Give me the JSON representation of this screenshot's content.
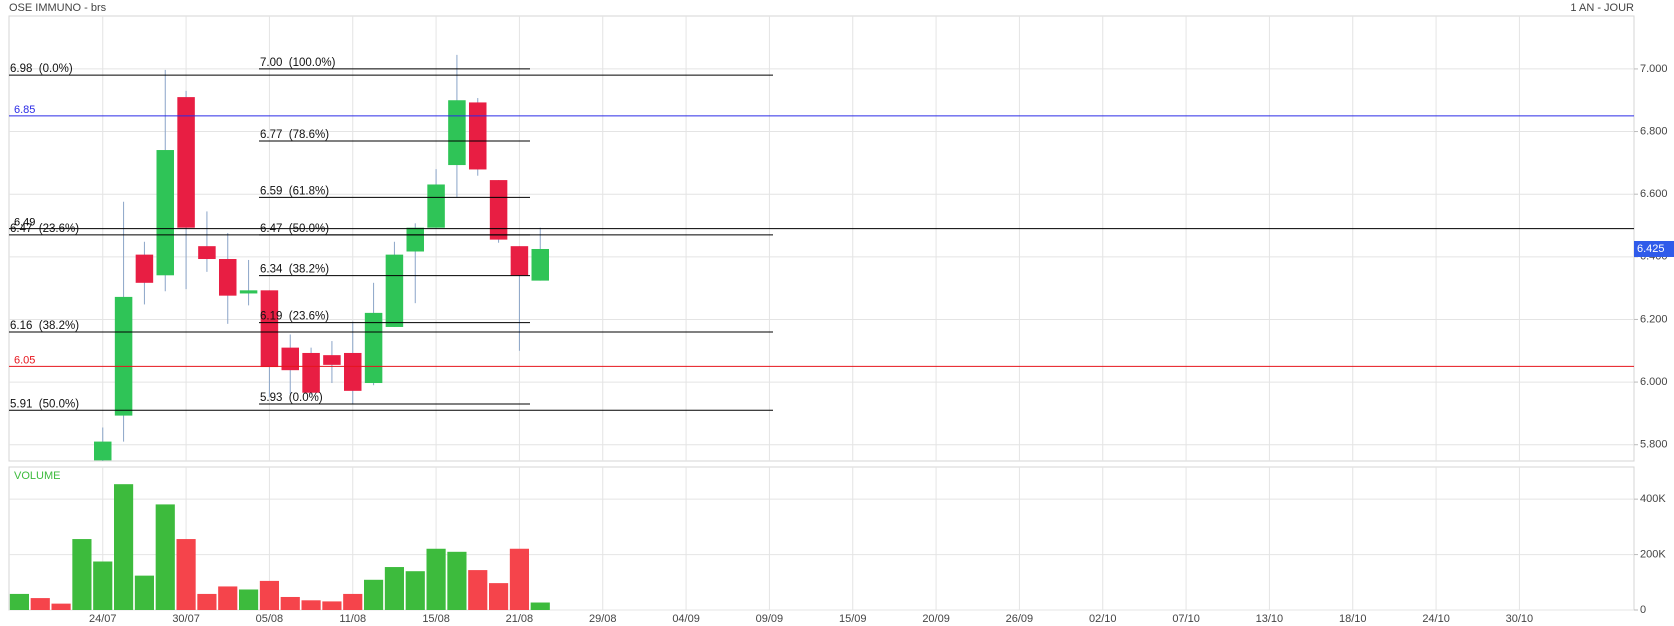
{
  "chart_data": [
    {
      "type": "candlestick",
      "title": "OSE IMMUNO - brs",
      "period": "1 AN - JOUR",
      "ylim": [
        5.748,
        7.169
      ],
      "yticks": [
        {
          "value": 7.0,
          "label": "7.000"
        },
        {
          "value": 6.8,
          "label": "6.800"
        },
        {
          "value": 6.6,
          "label": "6.600"
        },
        {
          "value": 6.4,
          "label": "6.400"
        },
        {
          "value": 6.2,
          "label": "6.200"
        },
        {
          "value": 6.0,
          "label": "6.000"
        },
        {
          "value": 5.8,
          "label": "5.800"
        }
      ],
      "grid": true,
      "up_color": "#2fc457",
      "down_color": "#e81e43",
      "open": [
        null,
        null,
        null,
        null,
        5.75,
        5.893,
        6.407,
        6.341,
        6.91,
        6.434,
        6.393,
        6.283,
        6.293,
        6.11,
        6.093,
        6.086,
        6.093,
        5.997,
        6.176,
        6.417,
        6.493,
        6.693,
        6.893,
        6.645,
        6.434,
        6.324,
        null,
        null,
        null,
        null,
        null,
        null,
        null,
        null,
        null,
        null,
        null,
        null,
        null,
        null,
        null,
        null,
        null,
        null,
        null,
        null,
        null,
        null,
        null,
        null,
        null,
        null,
        null,
        null,
        null,
        null,
        null,
        null,
        null,
        null,
        null,
        null,
        null,
        null,
        null,
        null,
        null,
        null,
        null,
        null,
        null,
        null,
        null,
        null,
        null,
        null,
        null,
        null
      ],
      "high": [
        null,
        null,
        null,
        null,
        5.855,
        6.576,
        6.448,
        6.997,
        6.93,
        6.545,
        6.476,
        6.39,
        6.293,
        6.152,
        6.11,
        6.131,
        6.193,
        6.317,
        6.448,
        6.507,
        6.68,
        7.045,
        6.907,
        6.645,
        6.434,
        6.493,
        null,
        null,
        null,
        null,
        null,
        null,
        null,
        null,
        null,
        null,
        null,
        null,
        null,
        null,
        null,
        null,
        null,
        null,
        null,
        null,
        null,
        null,
        null,
        null,
        null,
        null,
        null,
        null,
        null,
        null,
        null,
        null,
        null,
        null,
        null,
        null,
        null,
        null,
        null,
        null,
        null,
        null,
        null,
        null,
        null,
        null,
        null,
        null,
        null,
        null,
        null,
        null
      ],
      "low": [
        null,
        null,
        null,
        null,
        5.74,
        5.81,
        6.248,
        6.29,
        6.297,
        6.352,
        6.186,
        6.245,
        5.952,
        5.962,
        5.959,
        5.997,
        5.931,
        5.99,
        6.176,
        6.252,
        6.493,
        6.59,
        6.659,
        6.445,
        6.1,
        6.324,
        null,
        null,
        null,
        null,
        null,
        null,
        null,
        null,
        null,
        null,
        null,
        null,
        null,
        null,
        null,
        null,
        null,
        null,
        null,
        null,
        null,
        null,
        null,
        null,
        null,
        null,
        null,
        null,
        null,
        null,
        null,
        null,
        null,
        null,
        null,
        null,
        null,
        null,
        null,
        null,
        null,
        null,
        null,
        null,
        null,
        null,
        null,
        null,
        null,
        null,
        null,
        null
      ],
      "close": [
        null,
        null,
        null,
        null,
        5.81,
        6.272,
        6.317,
        6.741,
        6.493,
        6.393,
        6.276,
        6.293,
        6.048,
        6.038,
        5.966,
        6.055,
        5.972,
        6.221,
        6.407,
        6.493,
        6.631,
        6.9,
        6.679,
        6.455,
        6.341,
        6.425,
        null,
        null,
        null,
        null,
        null,
        null,
        null,
        null,
        null,
        null,
        null,
        null,
        null,
        null,
        null,
        null,
        null,
        null,
        null,
        null,
        null,
        null,
        null,
        null,
        null,
        null,
        null,
        null,
        null,
        null,
        null,
        null,
        null,
        null,
        null,
        null,
        null,
        null,
        null,
        null,
        null,
        null,
        null,
        null,
        null,
        null,
        null,
        null,
        null,
        null,
        null,
        null
      ],
      "last_price": 6.425,
      "last_price_color": "#2f5bea",
      "lines": [
        {
          "value": 6.85,
          "label": "6.85",
          "color": "#2b2be6"
        },
        {
          "value": 6.05,
          "label": "6.05",
          "color": "#e6141c"
        },
        {
          "value": 6.49,
          "label": "6.49",
          "color": "#000000"
        }
      ],
      "fib_a": [
        {
          "value": 6.98,
          "label": "6.98  (0.0%)"
        },
        {
          "value": 6.47,
          "label": "6.47  (23.6%)"
        },
        {
          "value": 6.16,
          "label": "6.16  (38.2%)"
        },
        {
          "value": 5.91,
          "label": "5.91  (50.0%)"
        }
      ],
      "fib_b": [
        {
          "value": 7.0,
          "label": "7.00  (100.0%)"
        },
        {
          "value": 6.77,
          "label": "6.77  (78.6%)"
        },
        {
          "value": 6.59,
          "label": "6.59  (61.8%)"
        },
        {
          "value": 6.47,
          "label": "6.47  (50.0%)"
        },
        {
          "value": 6.34,
          "label": "6.34  (38.2%)"
        },
        {
          "value": 6.19,
          "label": "6.19  (23.6%)"
        },
        {
          "value": 5.93,
          "label": "5.93  (0.0%)"
        }
      ]
    },
    {
      "type": "bar",
      "title": "VOLUME",
      "title_color": "#3dbb3d",
      "categories": [
        null,
        null,
        null,
        null,
        "24/07",
        null,
        null,
        null,
        "30/07",
        null,
        null,
        null,
        "05/08",
        null,
        null,
        null,
        "11/08",
        null,
        null,
        null,
        "15/08",
        null,
        null,
        null,
        "21/08",
        null,
        null,
        null,
        "29/08",
        null,
        null,
        null,
        "04/09",
        null,
        null,
        null,
        "09/09",
        null,
        null,
        null,
        "15/09",
        null,
        null,
        null,
        "20/09",
        null,
        null,
        null,
        "26/09",
        null,
        null,
        null,
        "02/10",
        null,
        null,
        null,
        "07/10",
        null,
        null,
        null,
        "13/10",
        null,
        null,
        null,
        "18/10",
        null,
        null,
        null,
        "24/10",
        null,
        null,
        null,
        "30/10",
        null,
        null,
        null,
        null,
        null
      ],
      "values": [
        58000,
        43000,
        23000,
        256000,
        175000,
        454000,
        124000,
        381000,
        256000,
        58000,
        85000,
        74000,
        105000,
        47000,
        35000,
        31000,
        58000,
        109000,
        155000,
        140000,
        221000,
        210000,
        144000,
        97000,
        221000,
        27000,
        null,
        null,
        null,
        null,
        null,
        null,
        null,
        null,
        null,
        null,
        null,
        null,
        null,
        null,
        null,
        null,
        null,
        null,
        null,
        null,
        null,
        null,
        null,
        null,
        null,
        null,
        null,
        null,
        null,
        null,
        null,
        null,
        null,
        null,
        null,
        null,
        null,
        null,
        null,
        null,
        null,
        null,
        null,
        null,
        null,
        null,
        null,
        null,
        null,
        null,
        null,
        null
      ],
      "colors": [
        "#3dbb3d",
        "#f5444b",
        "#f5444b",
        "#3dbb3d",
        "#3dbb3d",
        "#3dbb3d",
        "#3dbb3d",
        "#3dbb3d",
        "#f5444b",
        "#f5444b",
        "#f5444b",
        "#3dbb3d",
        "#f5444b",
        "#f5444b",
        "#f5444b",
        "#f5444b",
        "#f5444b",
        "#3dbb3d",
        "#3dbb3d",
        "#3dbb3d",
        "#3dbb3d",
        "#3dbb3d",
        "#f5444b",
        "#f5444b",
        "#f5444b",
        "#3dbb3d",
        null,
        null,
        null,
        null,
        null,
        null,
        null,
        null,
        null,
        null,
        null,
        null,
        null,
        null,
        null,
        null,
        null,
        null,
        null,
        null,
        null,
        null,
        null,
        null,
        null,
        null,
        null,
        null,
        null,
        null,
        null,
        null,
        null,
        null,
        null,
        null,
        null,
        null,
        null,
        null,
        null,
        null,
        null,
        null,
        null,
        null,
        null,
        null,
        null,
        null,
        null,
        null
      ],
      "ylim": [
        0,
        516000
      ],
      "yticks": [
        0,
        {
          "value": 200000,
          "label": "200K"
        },
        {
          "value": 400000,
          "label": "400K"
        }
      ],
      "grid": true
    }
  ]
}
